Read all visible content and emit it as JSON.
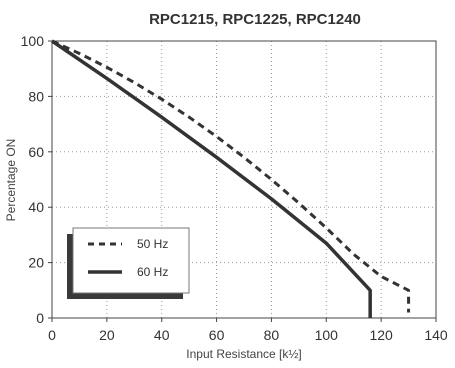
{
  "chart_data": {
    "type": "line",
    "title": "RPC1215, RPC1225, RPC1240",
    "xlabel": "Input Resistance  [k½]",
    "ylabel": "Percentage ON",
    "xlim": [
      0,
      140
    ],
    "ylim": [
      0,
      100
    ],
    "xticks": [
      "0",
      "20",
      "40",
      "60",
      "80",
      "100",
      "120",
      "140"
    ],
    "yticks": [
      "0",
      "20",
      "40",
      "60",
      "80",
      "100"
    ],
    "grid": true,
    "legend_position": "bottom-left",
    "series": [
      {
        "name": "50 Hz",
        "style": "dashed",
        "color": "#333333",
        "points": [
          [
            0,
            100
          ],
          [
            10,
            95.5
          ],
          [
            20,
            90.5
          ],
          [
            30,
            85
          ],
          [
            40,
            79
          ],
          [
            50,
            72.5
          ],
          [
            60,
            65.5
          ],
          [
            70,
            58
          ],
          [
            80,
            50
          ],
          [
            90,
            41.5
          ],
          [
            100,
            32.5
          ],
          [
            110,
            23
          ],
          [
            120,
            15
          ],
          [
            130,
            10
          ],
          [
            130,
            2
          ]
        ]
      },
      {
        "name": "60 Hz",
        "style": "solid",
        "color": "#333333",
        "points": [
          [
            0,
            100
          ],
          [
            20,
            86.5
          ],
          [
            40,
            72.5
          ],
          [
            60,
            58
          ],
          [
            80,
            43
          ],
          [
            100,
            27
          ],
          [
            116,
            10
          ],
          [
            116,
            0
          ]
        ]
      }
    ]
  }
}
